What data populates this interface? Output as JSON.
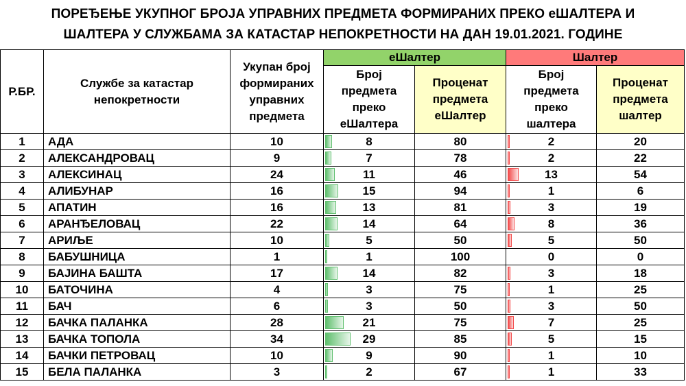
{
  "title_line1": "ПОРЕЂЕЊЕ УКУПНОГ БРОЈА УПРАВНИХ ПРЕДМЕТА ФОРМИРАНИХ ПРЕКО еШАЛТЕРА И",
  "title_line2": "ШАЛТЕРА У СЛУЖБАМА ЗА КАТАСТАР НЕПОКРЕТНОСТИ НА ДАН 19.01.2021. ГОДИНЕ",
  "headers": {
    "rb": "Р.БР.",
    "office": "Службе за катастар непокретности",
    "total": "Укупан број формираних управних предмета",
    "group_e": "еШалтер",
    "e_count": "Број предмета преко еШалтера",
    "e_pct": "Проценат предмета еШалтер",
    "group_s": "Шалтер",
    "s_count": "Број предмета преко шалтера",
    "s_pct": "Проценат предмета шалтер"
  },
  "colors": {
    "green": "#92d36a",
    "red": "#ff7a7a",
    "yellow": "#ffffc8"
  },
  "bar_max": 34,
  "rows": [
    {
      "rb": "1",
      "office": "АДА",
      "total": "10",
      "e": "8",
      "ep": "80",
      "s": "2",
      "sp": "20"
    },
    {
      "rb": "2",
      "office": "АЛЕКСАНДРОВАЦ",
      "total": "9",
      "e": "7",
      "ep": "78",
      "s": "2",
      "sp": "22"
    },
    {
      "rb": "3",
      "office": "АЛЕКСИНАЦ",
      "total": "24",
      "e": "11",
      "ep": "46",
      "s": "13",
      "sp": "54"
    },
    {
      "rb": "4",
      "office": "АЛИБУНАР",
      "total": "16",
      "e": "15",
      "ep": "94",
      "s": "1",
      "sp": "6"
    },
    {
      "rb": "5",
      "office": "АПАТИН",
      "total": "16",
      "e": "13",
      "ep": "81",
      "s": "3",
      "sp": "19"
    },
    {
      "rb": "6",
      "office": "АРАНЂЕЛОВАЦ",
      "total": "22",
      "e": "14",
      "ep": "64",
      "s": "8",
      "sp": "36"
    },
    {
      "rb": "7",
      "office": "АРИЉЕ",
      "total": "10",
      "e": "5",
      "ep": "50",
      "s": "5",
      "sp": "50"
    },
    {
      "rb": "8",
      "office": "БАБУШНИЦА",
      "total": "1",
      "e": "1",
      "ep": "100",
      "s": "0",
      "sp": "0"
    },
    {
      "rb": "9",
      "office": "БАЈИНА БАШТА",
      "total": "17",
      "e": "14",
      "ep": "82",
      "s": "3",
      "sp": "18"
    },
    {
      "rb": "10",
      "office": "БАТОЧИНА",
      "total": "4",
      "e": "3",
      "ep": "75",
      "s": "1",
      "sp": "25"
    },
    {
      "rb": "11",
      "office": "БАЧ",
      "total": "6",
      "e": "3",
      "ep": "50",
      "s": "3",
      "sp": "50"
    },
    {
      "rb": "12",
      "office": "БАЧКА ПАЛАНКА",
      "total": "28",
      "e": "21",
      "ep": "75",
      "s": "7",
      "sp": "25"
    },
    {
      "rb": "13",
      "office": "БАЧКА ТОПОЛА",
      "total": "34",
      "e": "29",
      "ep": "85",
      "s": "5",
      "sp": "15"
    },
    {
      "rb": "14",
      "office": "БАЧКИ ПЕТРОВАЦ",
      "total": "10",
      "e": "9",
      "ep": "90",
      "s": "1",
      "sp": "10"
    },
    {
      "rb": "15",
      "office": "БЕЛА ПАЛАНКА",
      "total": "3",
      "e": "2",
      "ep": "67",
      "s": "1",
      "sp": "33"
    }
  ]
}
